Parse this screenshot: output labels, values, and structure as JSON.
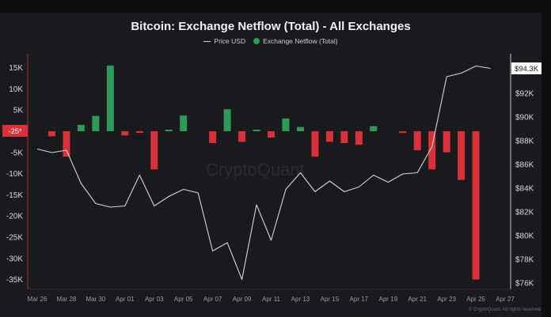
{
  "header": {
    "title": "Bitcoin: Exchange Netflow (Total) - All Exchanges",
    "legend": [
      {
        "label": "Price USD",
        "type": "line",
        "color": "#cfcfcf"
      },
      {
        "label": "Exchange Netflow (Total)",
        "type": "bar",
        "color": "#2e9a57"
      }
    ]
  },
  "colors": {
    "positive": "#2e9a57",
    "negative": "#d8313a",
    "price_line": "#d4d4d4",
    "background": "#1a1a1e",
    "frame": "#0e0e10"
  },
  "left_axis": {
    "ticks": [
      "15K",
      "10K",
      "5K",
      "-5K",
      "-10K",
      "-15K",
      "-20K",
      "-25K",
      "-30K",
      "-35K"
    ],
    "current_marker": "-25*"
  },
  "right_axis": {
    "ticks": [
      "$92K",
      "$90K",
      "$88K",
      "$86K",
      "$84K",
      "$82K",
      "$80K",
      "$78K",
      "$76K"
    ],
    "current_marker": "$94.3K"
  },
  "x_axis": {
    "ticks": [
      "Mar 26",
      "Mar 28",
      "Mar 30",
      "Apr 01",
      "Apr 03",
      "Apr 05",
      "Apr 07",
      "Apr 09",
      "Apr 11",
      "Apr 13",
      "Apr 15",
      "Apr 17",
      "Apr 19",
      "Apr 21",
      "Apr 23",
      "Apr 25",
      "Apr 27"
    ]
  },
  "watermark": "CryptoQuant",
  "copyright": "© CryptoQuant. All rights reserved",
  "chart_data": {
    "type": "bar",
    "title": "Bitcoin: Exchange Netflow (Total) - All Exchanges",
    "xlabel": "",
    "ylabel": "Exchange Netflow (BTC)",
    "y2label": "Price USD",
    "ylim": [
      -37000,
      18000
    ],
    "y2lim": [
      75000,
      96000
    ],
    "legend_position": "top",
    "grid": false,
    "categories": [
      "Mar 26",
      "Mar 27",
      "Mar 28",
      "Mar 29",
      "Mar 30",
      "Mar 31",
      "Apr 01",
      "Apr 02",
      "Apr 03",
      "Apr 04",
      "Apr 05",
      "Apr 06",
      "Apr 07",
      "Apr 08",
      "Apr 09",
      "Apr 10",
      "Apr 11",
      "Apr 12",
      "Apr 13",
      "Apr 14",
      "Apr 15",
      "Apr 16",
      "Apr 17",
      "Apr 18",
      "Apr 19",
      "Apr 20",
      "Apr 21",
      "Apr 22",
      "Apr 23",
      "Apr 24",
      "Apr 25",
      "Apr 26"
    ],
    "series": [
      {
        "name": "Exchange Netflow (Total)",
        "type": "bar",
        "axis": "left",
        "values": [
          0,
          -1200,
          -6000,
          1500,
          3600,
          15500,
          -1000,
          -400,
          -9000,
          300,
          3700,
          0,
          -2800,
          5200,
          -2500,
          200,
          -1500,
          3000,
          1000,
          -6000,
          -2500,
          -2800,
          -3200,
          1200,
          0,
          -400,
          -4500,
          -9000,
          -5000,
          -11500,
          -35000,
          0
        ]
      },
      {
        "name": "Price USD",
        "type": "line",
        "axis": "right",
        "values": [
          87300,
          87000,
          87200,
          84400,
          82700,
          82400,
          82500,
          85100,
          82500,
          83300,
          83900,
          83600,
          78700,
          79400,
          76300,
          82600,
          79600,
          83900,
          85300,
          83700,
          84600,
          83700,
          84100,
          85100,
          84500,
          85200,
          85300,
          87500,
          93400,
          93700,
          94300,
          94100
        ]
      }
    ]
  }
}
